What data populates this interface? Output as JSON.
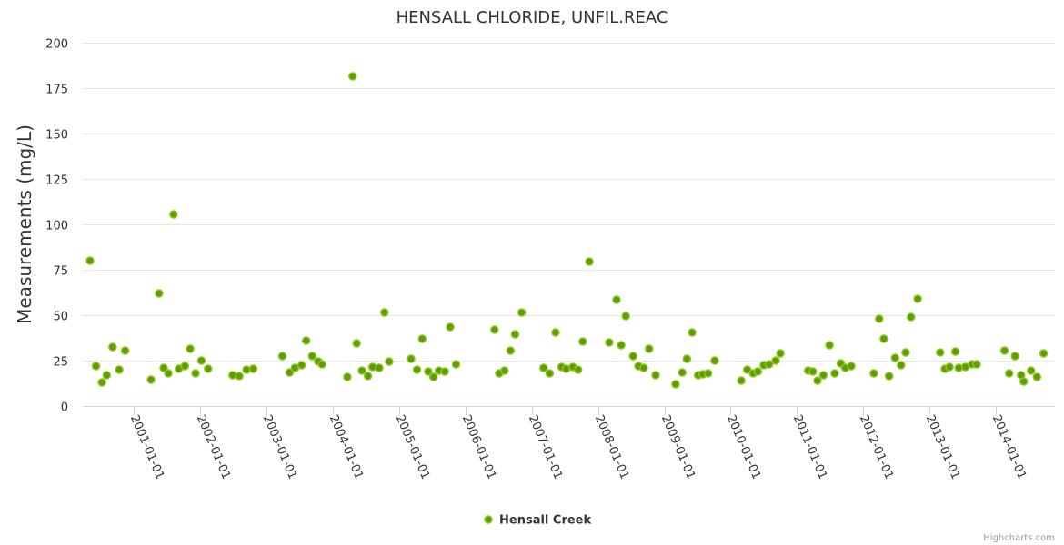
{
  "chart_data": {
    "type": "scatter",
    "title": "HENSALL CHLORIDE, UNFIL.REAC",
    "xlabel": "",
    "ylabel": "Measurements (mg/L)",
    "x_units": "decimal year",
    "xlim": [
      2000.23,
      2014.89
    ],
    "ylim": [
      0,
      200
    ],
    "yticks": [
      0,
      25,
      50,
      75,
      100,
      125,
      150,
      175,
      200
    ],
    "xticks": [
      2001,
      2002,
      2003,
      2004,
      2005,
      2006,
      2007,
      2008,
      2009,
      2010,
      2011,
      2012,
      2013,
      2014
    ],
    "xtick_labels": [
      "2001-01-01",
      "2002-01-01",
      "2003-01-01",
      "2004-01-01",
      "2005-01-01",
      "2006-01-01",
      "2007-01-01",
      "2008-01-01",
      "2009-01-01",
      "2010-01-01",
      "2011-01-01",
      "2012-01-01",
      "2013-01-01",
      "2014-01-01"
    ],
    "grid": true,
    "legend_position": "bottom-center",
    "series": [
      {
        "name": "Hensall Creek",
        "color": "#5a9e00",
        "x": [
          2000.34,
          2000.43,
          2000.52,
          2000.59,
          2000.68,
          2000.78,
          2000.87,
          2001.26,
          2001.38,
          2001.45,
          2001.52,
          2001.6,
          2001.68,
          2001.77,
          2001.85,
          2001.93,
          2002.02,
          2002.12,
          2002.49,
          2002.59,
          2002.7,
          2002.8,
          2003.24,
          2003.35,
          2003.43,
          2003.53,
          2003.6,
          2003.69,
          2003.78,
          2003.84,
          2004.22,
          2004.3,
          2004.36,
          2004.44,
          2004.53,
          2004.6,
          2004.7,
          2004.78,
          2004.85,
          2005.18,
          2005.27,
          2005.35,
          2005.44,
          2005.52,
          2005.6,
          2005.69,
          2005.77,
          2005.86,
          2006.44,
          2006.51,
          2006.59,
          2006.68,
          2006.75,
          2006.85,
          2007.18,
          2007.27,
          2007.36,
          2007.45,
          2007.52,
          2007.62,
          2007.7,
          2007.77,
          2007.87,
          2008.17,
          2008.28,
          2008.35,
          2008.42,
          2008.53,
          2008.61,
          2008.69,
          2008.77,
          2008.87,
          2009.17,
          2009.27,
          2009.34,
          2009.42,
          2009.51,
          2009.58,
          2009.66,
          2009.76,
          2010.16,
          2010.25,
          2010.34,
          2010.41,
          2010.5,
          2010.58,
          2010.68,
          2010.75,
          2011.17,
          2011.24,
          2011.31,
          2011.4,
          2011.49,
          2011.57,
          2011.66,
          2011.73,
          2011.82,
          2012.16,
          2012.24,
          2012.31,
          2012.39,
          2012.48,
          2012.57,
          2012.64,
          2012.72,
          2012.82,
          2013.16,
          2013.23,
          2013.3,
          2013.39,
          2013.44,
          2013.54,
          2013.64,
          2013.71,
          2014.13,
          2014.2,
          2014.29,
          2014.38,
          2014.42,
          2014.53,
          2014.62,
          2014.72
        ],
        "y": [
          80,
          22,
          13,
          17,
          32.5,
          20,
          30.5,
          14.5,
          62,
          21,
          18,
          105.5,
          20.5,
          22,
          31.5,
          18,
          25,
          20.5,
          17,
          16.5,
          20,
          20.5,
          27.5,
          18.5,
          21,
          22.5,
          36,
          27.5,
          24.5,
          23,
          16,
          181.5,
          34.5,
          19.5,
          16.5,
          21.5,
          21,
          51.5,
          24.5,
          26,
          20,
          37,
          19,
          16,
          19.5,
          19,
          43.5,
          23,
          42,
          18,
          19.5,
          30.5,
          39.5,
          51.5,
          21,
          18,
          40.5,
          21.5,
          20.5,
          21.5,
          20,
          35.5,
          79.5,
          35,
          58.5,
          33.5,
          49.5,
          27.5,
          22,
          21,
          31.5,
          17,
          12,
          18.5,
          26,
          40.5,
          17,
          17.5,
          18,
          25,
          14,
          20,
          18,
          19,
          22.5,
          23,
          25,
          29,
          19.5,
          19,
          14,
          17,
          33.5,
          18,
          23.5,
          21,
          22,
          18,
          48,
          37,
          16.5,
          26.5,
          22.5,
          29.5,
          49,
          59,
          29.5,
          20.5,
          21.5,
          30,
          21,
          21.5,
          23,
          23,
          30.5,
          18,
          27.5,
          17,
          13.5,
          19.5,
          16,
          29
        ]
      }
    ],
    "credits": "Highcharts.com"
  }
}
